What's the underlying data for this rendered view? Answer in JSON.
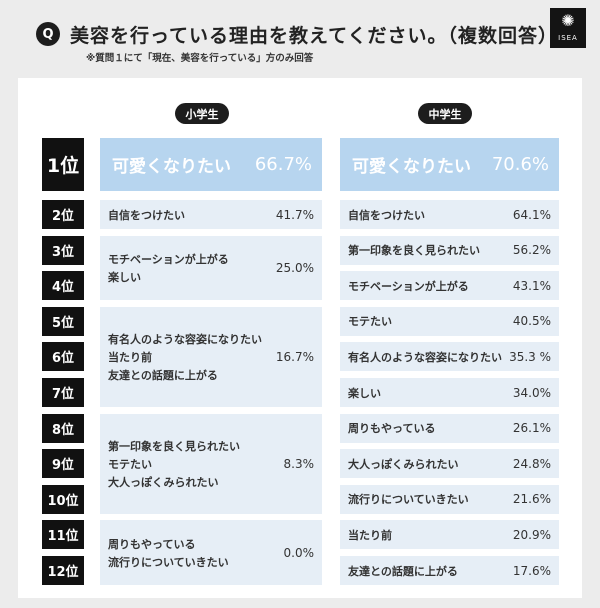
{
  "header": {
    "q_badge": "Q",
    "question": "美容を行っている理由を教えてください。（複数回答）",
    "note": "※質問１にて「現在、美容を行っている」方のみ回答",
    "logo_text": "ISEA",
    "logo_icon": "sunburst-icon"
  },
  "chart_data": {
    "type": "table",
    "ranks": [
      "1位",
      "2位",
      "3位",
      "4位",
      "5位",
      "6位",
      "7位",
      "8位",
      "9位",
      "10位",
      "11位",
      "12位"
    ],
    "groups": [
      {
        "name": "小学生",
        "entries": [
          {
            "items": [
              "可愛くなりたい"
            ],
            "value": "66.7%"
          },
          {
            "items": [
              "自信をつけたい"
            ],
            "value": "41.7%"
          },
          {
            "items": [
              "モチベーションが上がる",
              "楽しい"
            ],
            "value": "25.0%"
          },
          {
            "items": [
              "有名人のような容姿になりたい",
              "当たり前",
              "友達との話題に上がる"
            ],
            "value": "16.7%"
          },
          {
            "items": [
              "第一印象を良く見られたい",
              "モテたい",
              "大人っぽくみられたい"
            ],
            "value": "8.3%"
          },
          {
            "items": [
              "周りもやっている",
              "流行りについていきたい"
            ],
            "value": "0.0%"
          }
        ]
      },
      {
        "name": "中学生",
        "entries": [
          {
            "items": [
              "可愛くなりたい"
            ],
            "value": "70.6%"
          },
          {
            "items": [
              "自信をつけたい"
            ],
            "value": "64.1%"
          },
          {
            "items": [
              "第一印象を良く見られたい"
            ],
            "value": "56.2%"
          },
          {
            "items": [
              "モチベーションが上がる"
            ],
            "value": "43.1%"
          },
          {
            "items": [
              "モテたい"
            ],
            "value": "40.5%"
          },
          {
            "items": [
              "有名人のような容姿になりたい"
            ],
            "value": "35.3 %"
          },
          {
            "items": [
              "楽しい"
            ],
            "value": "34.0%"
          },
          {
            "items": [
              "周りもやっている"
            ],
            "value": "26.1%"
          },
          {
            "items": [
              "大人っぽくみられたい"
            ],
            "value": "24.8%"
          },
          {
            "items": [
              "流行りについていきたい"
            ],
            "value": "21.6%"
          },
          {
            "items": [
              "当たり前"
            ],
            "value": "20.9%"
          },
          {
            "items": [
              "友達との話題に上がる"
            ],
            "value": "17.6%"
          }
        ]
      }
    ]
  }
}
